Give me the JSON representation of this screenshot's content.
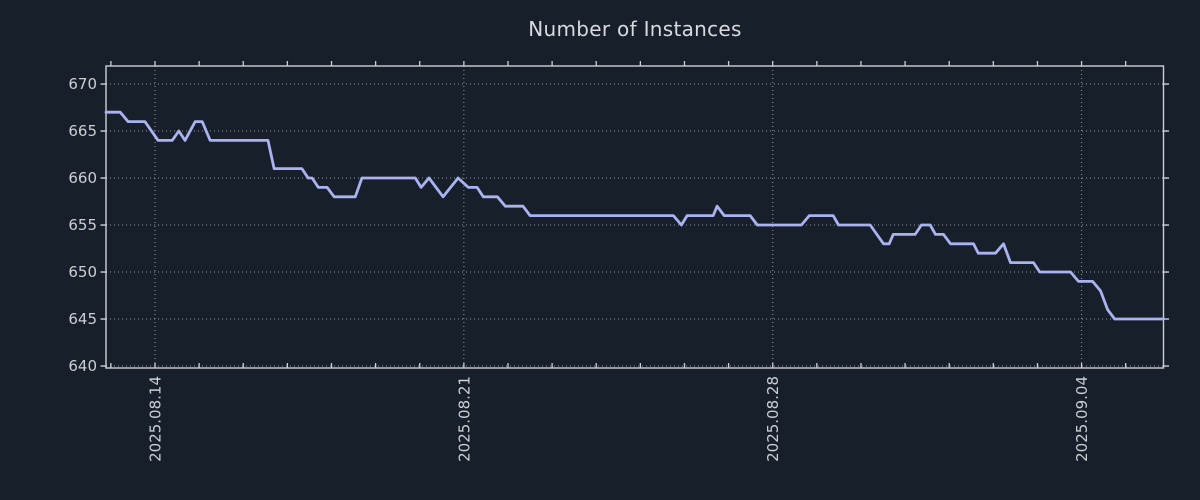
{
  "window": {
    "background": "#171f2b"
  },
  "chart_data": {
    "type": "line",
    "title": "Number of Instances",
    "legend": "none",
    "grid": {
      "style": "dotted",
      "horizontal": "every y tick",
      "vertical": "every 7 days (labeled ticks)"
    },
    "colors": {
      "background": "#171f2b",
      "line": "#aab2f0",
      "grid": "#c8ccd2",
      "spine": "#ccd0d4",
      "tick_label": "#ccd0d4",
      "title": "#d8dade"
    },
    "x_axis": {
      "unit": "days since 2025.08.14",
      "range": [
        -1.111,
        22.857
      ],
      "major_ticks": [
        {
          "t": 0,
          "label": "2025.08.14"
        },
        {
          "t": 7,
          "label": "2025.08.21"
        },
        {
          "t": 14,
          "label": "2025.08.28"
        },
        {
          "t": 21,
          "label": "2025.09.04"
        }
      ],
      "minor_tick_step_days": 1,
      "label_rotation_deg": 90
    },
    "y_axis": {
      "range": [
        639.79,
        671.92
      ],
      "ticks": [
        640,
        645,
        650,
        655,
        660,
        665,
        670
      ]
    },
    "series": [
      {
        "name": "instances",
        "color": "#aab2f0",
        "points": [
          [
            -1.11,
            667
          ],
          [
            -0.79,
            667
          ],
          [
            -0.61,
            666
          ],
          [
            -0.23,
            666
          ],
          [
            0.07,
            664
          ],
          [
            0.39,
            664
          ],
          [
            0.54,
            665
          ],
          [
            0.68,
            664
          ],
          [
            0.91,
            666
          ],
          [
            1.07,
            666
          ],
          [
            1.25,
            664
          ],
          [
            2.56,
            664
          ],
          [
            2.7,
            661
          ],
          [
            3.33,
            661
          ],
          [
            3.47,
            660
          ],
          [
            3.56,
            660
          ],
          [
            3.7,
            659
          ],
          [
            3.9,
            659
          ],
          [
            4.06,
            658
          ],
          [
            4.54,
            658
          ],
          [
            4.69,
            660
          ],
          [
            5.9,
            660
          ],
          [
            6.03,
            659
          ],
          [
            6.21,
            660
          ],
          [
            6.53,
            658
          ],
          [
            6.87,
            660
          ],
          [
            7.1,
            659
          ],
          [
            7.3,
            659
          ],
          [
            7.44,
            658
          ],
          [
            7.76,
            658
          ],
          [
            7.94,
            657
          ],
          [
            8.34,
            657
          ],
          [
            8.5,
            656
          ],
          [
            11.75,
            656
          ],
          [
            11.93,
            655
          ],
          [
            12.06,
            656
          ],
          [
            12.65,
            656
          ],
          [
            12.74,
            657
          ],
          [
            12.9,
            656
          ],
          [
            13.49,
            656
          ],
          [
            13.65,
            655
          ],
          [
            14.65,
            655
          ],
          [
            14.83,
            656
          ],
          [
            15.37,
            656
          ],
          [
            15.49,
            655
          ],
          [
            16.21,
            655
          ],
          [
            16.51,
            653
          ],
          [
            16.64,
            653
          ],
          [
            16.73,
            654
          ],
          [
            17.23,
            654
          ],
          [
            17.37,
            655
          ],
          [
            17.57,
            655
          ],
          [
            17.69,
            654
          ],
          [
            17.87,
            654
          ],
          [
            18.03,
            653
          ],
          [
            18.55,
            653
          ],
          [
            18.66,
            652
          ],
          [
            19.05,
            652
          ],
          [
            19.23,
            653
          ],
          [
            19.39,
            651
          ],
          [
            19.91,
            651
          ],
          [
            20.05,
            650
          ],
          [
            20.75,
            650
          ],
          [
            20.93,
            649
          ],
          [
            21.25,
            649
          ],
          [
            21.43,
            648
          ],
          [
            21.59,
            646
          ],
          [
            21.75,
            645
          ],
          [
            22.86,
            645
          ]
        ]
      }
    ]
  }
}
